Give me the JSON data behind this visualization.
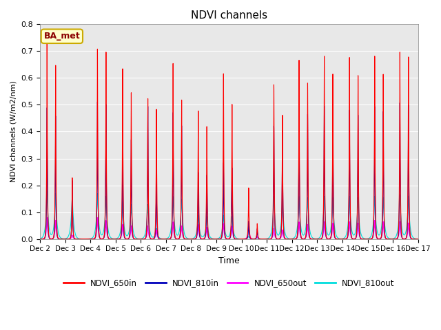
{
  "title": "NDVI channels",
  "xlabel": "Time",
  "ylabel": "NDVI channels (W/m2/nm)",
  "ylim": [
    0.0,
    0.8
  ],
  "annotation": "BA_met",
  "legend_labels": [
    "NDVI_650in",
    "NDVI_810in",
    "NDVI_650out",
    "NDVI_810out"
  ],
  "legend_colors": [
    "#ff0000",
    "#0000bb",
    "#ff00ff",
    "#00dddd"
  ],
  "background_color": "#e8e8e8",
  "xtick_labels": [
    "Dec 2",
    "Dec 3",
    "Dec 4",
    "Dec 5",
    "Dec 6",
    "Dec 7",
    "Dec 8",
    "Dec 9",
    "Dec 10",
    "Dec 11",
    "Dec 12",
    "Dec 13",
    "Dec 14",
    "Dec 15",
    "Dec 16",
    "Dec 17"
  ],
  "peaks": [
    {
      "day": 0,
      "r650in": 0.73,
      "r810in": 0.49,
      "r650out": 0.08,
      "r810out": 0.18,
      "second_r650in": 0.65,
      "second_r810in": 0.46,
      "second_r650out": 0.07,
      "second_r810out": 0.17
    },
    {
      "day": 1,
      "r650in": 0.23,
      "r810in": 0.22,
      "r650out": 0.015,
      "r810out": 0.17,
      "second_r650in": 0.0,
      "second_r810in": 0.0,
      "second_r650out": 0.0,
      "second_r810out": 0.0
    },
    {
      "day": 2,
      "r650in": 0.72,
      "r810in": 0.52,
      "r650out": 0.08,
      "r810out": 0.17,
      "second_r650in": 0.71,
      "second_r810in": 0.51,
      "second_r650out": 0.07,
      "second_r810out": 0.16
    },
    {
      "day": 3,
      "r650in": 0.65,
      "r810in": 0.4,
      "r650out": 0.055,
      "r810out": 0.14,
      "second_r650in": 0.56,
      "second_r810in": 0.38,
      "second_r650out": 0.05,
      "second_r810out": 0.13
    },
    {
      "day": 4,
      "r650in": 0.54,
      "r810in": 0.51,
      "r650out": 0.05,
      "r810out": 0.13,
      "second_r650in": 0.5,
      "second_r810in": 0.26,
      "second_r650out": 0.035,
      "second_r810out": 0.04
    },
    {
      "day": 5,
      "r650in": 0.68,
      "r810in": 0.49,
      "r650out": 0.065,
      "r810out": 0.16,
      "second_r650in": 0.54,
      "second_r810in": 0.44,
      "second_r650out": 0.05,
      "second_r810out": 0.15
    },
    {
      "day": 6,
      "r650in": 0.5,
      "r810in": 0.26,
      "r650out": 0.055,
      "r810out": 0.09,
      "second_r650in": 0.44,
      "second_r810in": 0.25,
      "second_r650out": 0.045,
      "second_r810out": 0.085
    },
    {
      "day": 7,
      "r650in": 0.65,
      "r810in": 0.3,
      "r650out": 0.06,
      "r810out": 0.09,
      "second_r650in": 0.53,
      "second_r810in": 0.28,
      "second_r650out": 0.05,
      "second_r810out": 0.085
    },
    {
      "day": 8,
      "r650in": 0.2,
      "r810in": 0.07,
      "r650out": 0.06,
      "r810out": 0.01,
      "second_r650in": 0.06,
      "second_r810in": 0.04,
      "second_r650out": 0.01,
      "second_r810out": 0.005
    },
    {
      "day": 9,
      "r650in": 0.6,
      "r810in": 0.44,
      "r650out": 0.04,
      "r810out": 0.16,
      "second_r650in": 0.48,
      "second_r810in": 0.42,
      "second_r650out": 0.035,
      "second_r810out": 0.15
    },
    {
      "day": 10,
      "r650in": 0.69,
      "r810in": 0.5,
      "r650out": 0.065,
      "r810out": 0.16,
      "second_r650in": 0.6,
      "second_r810in": 0.48,
      "second_r650out": 0.055,
      "second_r810out": 0.155
    },
    {
      "day": 11,
      "r650in": 0.7,
      "r810in": 0.51,
      "r650out": 0.065,
      "r810out": 0.16,
      "second_r650in": 0.63,
      "second_r810in": 0.49,
      "second_r650out": 0.06,
      "second_r810out": 0.155
    },
    {
      "day": 12,
      "r650in": 0.69,
      "r810in": 0.49,
      "r650out": 0.065,
      "r810out": 0.16,
      "second_r650in": 0.62,
      "second_r810in": 0.47,
      "second_r650out": 0.06,
      "second_r810out": 0.155
    },
    {
      "day": 13,
      "r650in": 0.69,
      "r810in": 0.5,
      "r650out": 0.07,
      "r810out": 0.16,
      "second_r650in": 0.62,
      "second_r810in": 0.48,
      "second_r650out": 0.065,
      "second_r810out": 0.155
    },
    {
      "day": 14,
      "r650in": 0.7,
      "r810in": 0.51,
      "r650out": 0.065,
      "r810out": 0.165,
      "second_r650in": 0.68,
      "second_r810in": 0.5,
      "second_r650out": 0.06,
      "second_r810out": 0.16
    }
  ]
}
